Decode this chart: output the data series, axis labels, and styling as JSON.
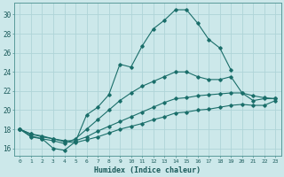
{
  "xlabel": "Humidex (Indice chaleur)",
  "bg_color": "#cce8ea",
  "grid_color": "#afd4d8",
  "line_color": "#1a6e6a",
  "xlim": [
    -0.5,
    23.5
  ],
  "ylim": [
    15.2,
    31.2
  ],
  "xticks": [
    0,
    1,
    2,
    3,
    4,
    5,
    6,
    7,
    8,
    9,
    10,
    11,
    12,
    13,
    14,
    15,
    16,
    17,
    18,
    19,
    20,
    21,
    22,
    23
  ],
  "yticks": [
    16,
    18,
    20,
    22,
    24,
    26,
    28,
    30
  ],
  "series1_x": [
    0,
    1,
    2,
    3,
    4,
    5,
    6,
    7,
    8,
    9,
    10,
    11,
    12,
    13,
    14,
    15,
    16,
    17,
    18,
    19
  ],
  "series1_y": [
    18.0,
    17.2,
    17.0,
    16.0,
    15.8,
    16.7,
    19.5,
    20.3,
    21.6,
    24.8,
    24.5,
    26.7,
    28.5,
    29.4,
    30.5,
    30.5,
    29.1,
    27.4,
    26.5,
    24.2
  ],
  "series2_x": [
    0,
    1,
    2,
    3,
    4,
    5,
    6,
    7,
    8,
    9,
    10,
    11,
    12,
    13,
    14,
    15,
    16,
    17,
    18,
    19,
    20,
    21,
    22,
    23
  ],
  "series2_y": [
    18.0,
    17.3,
    17.0,
    16.8,
    16.5,
    17.0,
    18.0,
    19.0,
    20.0,
    21.0,
    21.8,
    22.5,
    23.0,
    23.5,
    24.0,
    24.0,
    23.5,
    23.2,
    23.2,
    23.5,
    21.8,
    21.0,
    21.2,
    21.2
  ],
  "series3_x": [
    0,
    1,
    2,
    3,
    4,
    5,
    6,
    7,
    8,
    9,
    10,
    11,
    12,
    13,
    14,
    15,
    16,
    17,
    18,
    19,
    20,
    21,
    22,
    23
  ],
  "series3_y": [
    18.0,
    17.5,
    17.2,
    17.0,
    16.8,
    16.8,
    17.2,
    17.8,
    18.3,
    18.8,
    19.3,
    19.8,
    20.3,
    20.8,
    21.2,
    21.3,
    21.5,
    21.6,
    21.7,
    21.8,
    21.8,
    21.5,
    21.3,
    21.2
  ],
  "series4_x": [
    0,
    1,
    2,
    3,
    4,
    5,
    6,
    7,
    8,
    9,
    10,
    11,
    12,
    13,
    14,
    15,
    16,
    17,
    18,
    19,
    20,
    21,
    22,
    23
  ],
  "series4_y": [
    18.0,
    17.5,
    17.3,
    17.0,
    16.7,
    16.6,
    16.9,
    17.2,
    17.6,
    18.0,
    18.3,
    18.6,
    19.0,
    19.3,
    19.7,
    19.8,
    20.0,
    20.1,
    20.3,
    20.5,
    20.6,
    20.5,
    20.5,
    21.0
  ]
}
